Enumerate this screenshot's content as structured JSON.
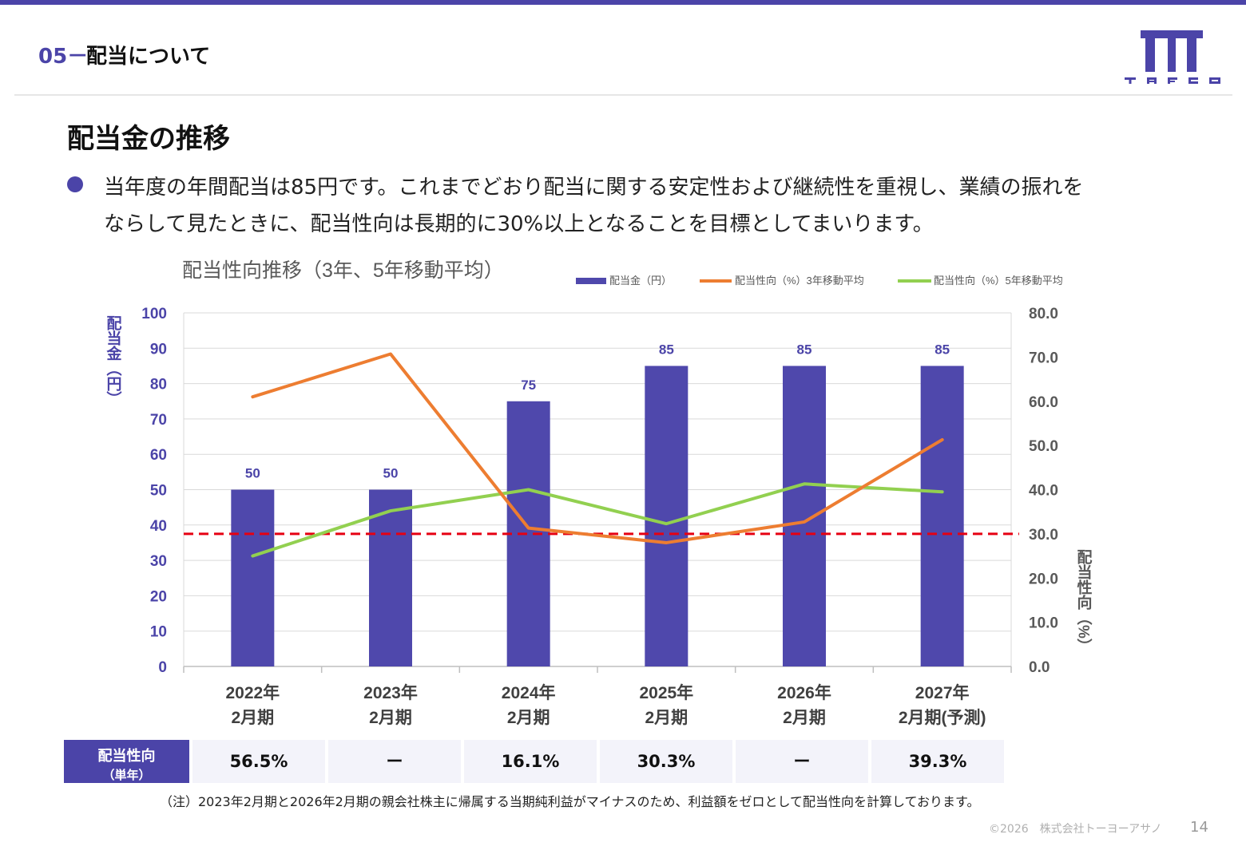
{
  "header": {
    "section_number": "05",
    "section_separator": "－",
    "section_title": "配当について",
    "logo_text": "TAFCO"
  },
  "page_heading": "配当金の推移",
  "bullet": {
    "line1": "当年度の年間配当は85円です。これまでどおり配当に関する安定性および継続性を重視し、業績の振れを",
    "line2": "ならして見たときに、配当性向は長期的に30%以上となることを目標としてまいります。"
  },
  "colors": {
    "bar": "#4f48ac",
    "line3": "#ed7d31",
    "line5": "#92d050",
    "target": "#e60012",
    "accent": "#4b44a8"
  },
  "chart_data": {
    "type": "bar",
    "title": "配当性向推移（3年、5年移動平均）",
    "categories": [
      [
        "2022年",
        "2月期"
      ],
      [
        "2023年",
        "2月期"
      ],
      [
        "2024年",
        "2月期"
      ],
      [
        "2025年",
        "2月期"
      ],
      [
        "2026年",
        "2月期"
      ],
      [
        "2027年",
        "2月期(予測)"
      ]
    ],
    "series": [
      {
        "name": "配当金（円）",
        "kind": "bar",
        "axis": "left",
        "values": [
          50,
          50,
          75,
          85,
          85,
          85
        ]
      },
      {
        "name": "配当性向（%）3年移動平均",
        "kind": "line",
        "axis": "right",
        "values": [
          61.0,
          70.7,
          31.3,
          28.0,
          32.7,
          51.3
        ]
      },
      {
        "name": "配当性向（%）5年移動平均",
        "kind": "line",
        "axis": "right",
        "values": [
          25.0,
          35.2,
          40.0,
          32.3,
          41.3,
          39.5
        ]
      }
    ],
    "target_line": {
      "axis": "right",
      "value": 30.0,
      "style": "dashed"
    },
    "ylabel_left": "配当金（円）",
    "ylabel_right": "配当性向（%）",
    "ylim_left": [
      0,
      100
    ],
    "ylim_right": [
      0,
      80
    ],
    "yticks_left": [
      "0",
      "10",
      "20",
      "30",
      "40",
      "50",
      "60",
      "70",
      "80",
      "90",
      "100"
    ],
    "yticks_right": [
      "0.0",
      "10.0",
      "20.0",
      "30.0",
      "40.0",
      "50.0",
      "60.0",
      "70.0",
      "80.0"
    ],
    "grid": true,
    "legend_position": "top-right"
  },
  "payout_table": {
    "header_line1": "配当性向",
    "header_line2": "（単年）",
    "values": [
      "56.5%",
      "ー",
      "16.1%",
      "30.3%",
      "ー",
      "39.3%"
    ]
  },
  "footnote": "（注）2023年2月期と2026年2月期の親会社株主に帰属する当期純利益がマイナスのため、利益額をゼロとして配当性向を計算しております。",
  "footer": {
    "copyright": "©2026　株式会社トーヨーアサノ",
    "page_number": "14"
  }
}
